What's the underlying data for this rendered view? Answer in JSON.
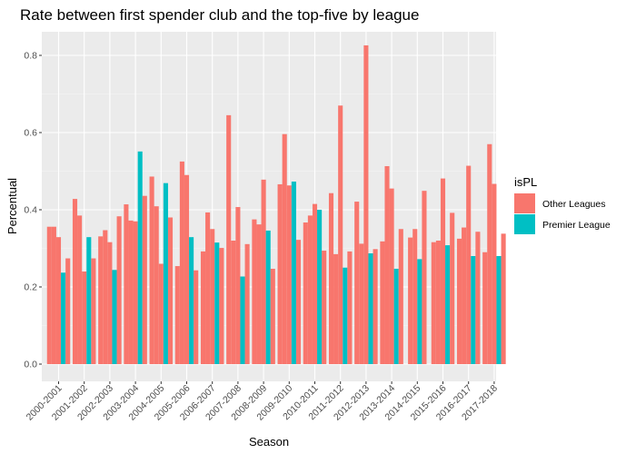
{
  "chart_data": {
    "type": "bar",
    "title": "Rate between first spender club and the top-five by league",
    "xlabel": "Season",
    "ylabel": "Percentual",
    "ylim": [
      0,
      0.85
    ],
    "yticks": [
      0.0,
      0.2,
      0.4,
      0.6,
      0.8
    ],
    "ytick_labels": [
      "0.0",
      "0.2",
      "0.4",
      "0.6",
      "0.8"
    ],
    "grid": true,
    "legend_position": "right",
    "legend": {
      "title": "isPL",
      "entries": [
        {
          "name": "Other Leagues",
          "color": "#F8766D"
        },
        {
          "name": "Premier League",
          "color": "#00BFC4"
        }
      ]
    },
    "categories": [
      "2000-2001",
      "2001-2002",
      "2002-2003",
      "2003-2004",
      "2004-2005",
      "2005-2006",
      "2006-2007",
      "2007-2008",
      "2008-2009",
      "2009-2010",
      "2010-2011",
      "2011-2012",
      "2012-2013",
      "2013-2014",
      "2014-2015",
      "2015-2016",
      "2016-2017",
      "2017-2018"
    ],
    "bars": [
      [
        {
          "v": 0.356,
          "s": "o"
        },
        {
          "v": 0.356,
          "s": "o"
        },
        {
          "v": 0.329,
          "s": "o"
        },
        {
          "v": 0.237,
          "s": "p"
        },
        {
          "v": 0.274,
          "s": "o"
        }
      ],
      [
        {
          "v": 0.428,
          "s": "o"
        },
        {
          "v": 0.385,
          "s": "o"
        },
        {
          "v": 0.24,
          "s": "o"
        },
        {
          "v": 0.329,
          "s": "p"
        },
        {
          "v": 0.274,
          "s": "o"
        }
      ],
      [
        {
          "v": 0.331,
          "s": "o"
        },
        {
          "v": 0.347,
          "s": "o"
        },
        {
          "v": 0.316,
          "s": "o"
        },
        {
          "v": 0.244,
          "s": "p"
        },
        {
          "v": 0.383,
          "s": "o"
        }
      ],
      [
        {
          "v": 0.414,
          "s": "o"
        },
        {
          "v": 0.372,
          "s": "o"
        },
        {
          "v": 0.37,
          "s": "o"
        },
        {
          "v": 0.551,
          "s": "p"
        },
        {
          "v": 0.436,
          "s": "o"
        }
      ],
      [
        {
          "v": 0.486,
          "s": "o"
        },
        {
          "v": 0.409,
          "s": "o"
        },
        {
          "v": 0.26,
          "s": "o"
        },
        {
          "v": 0.469,
          "s": "p"
        },
        {
          "v": 0.38,
          "s": "o"
        }
      ],
      [
        {
          "v": 0.254,
          "s": "o"
        },
        {
          "v": 0.525,
          "s": "o"
        },
        {
          "v": 0.49,
          "s": "o"
        },
        {
          "v": 0.329,
          "s": "p"
        },
        {
          "v": 0.243,
          "s": "o"
        }
      ],
      [
        {
          "v": 0.292,
          "s": "o"
        },
        {
          "v": 0.393,
          "s": "o"
        },
        {
          "v": 0.35,
          "s": "o"
        },
        {
          "v": 0.315,
          "s": "p"
        },
        {
          "v": 0.301,
          "s": "o"
        }
      ],
      [
        {
          "v": 0.645,
          "s": "o"
        },
        {
          "v": 0.32,
          "s": "o"
        },
        {
          "v": 0.407,
          "s": "o"
        },
        {
          "v": 0.227,
          "s": "p"
        },
        {
          "v": 0.311,
          "s": "o"
        }
      ],
      [
        {
          "v": 0.375,
          "s": "o"
        },
        {
          "v": 0.362,
          "s": "o"
        },
        {
          "v": 0.478,
          "s": "o"
        },
        {
          "v": 0.346,
          "s": "p"
        },
        {
          "v": 0.247,
          "s": "o"
        }
      ],
      [
        {
          "v": 0.466,
          "s": "o"
        },
        {
          "v": 0.596,
          "s": "o"
        },
        {
          "v": 0.463,
          "s": "o"
        },
        {
          "v": 0.473,
          "s": "p"
        },
        {
          "v": 0.322,
          "s": "o"
        }
      ],
      [
        {
          "v": 0.367,
          "s": "o"
        },
        {
          "v": 0.385,
          "s": "o"
        },
        {
          "v": 0.415,
          "s": "o"
        },
        {
          "v": 0.4,
          "s": "p"
        },
        {
          "v": 0.294,
          "s": "o"
        }
      ],
      [
        {
          "v": 0.443,
          "s": "o"
        },
        {
          "v": 0.285,
          "s": "o"
        },
        {
          "v": 0.67,
          "s": "o"
        },
        {
          "v": 0.25,
          "s": "p"
        },
        {
          "v": 0.292,
          "s": "o"
        }
      ],
      [
        {
          "v": 0.421,
          "s": "o"
        },
        {
          "v": 0.312,
          "s": "o"
        },
        {
          "v": 0.826,
          "s": "o"
        },
        {
          "v": 0.287,
          "s": "p"
        },
        {
          "v": 0.298,
          "s": "o"
        }
      ],
      [
        {
          "v": 0.318,
          "s": "o"
        },
        {
          "v": 0.513,
          "s": "o"
        },
        {
          "v": 0.455,
          "s": "o"
        },
        {
          "v": 0.247,
          "s": "p"
        },
        {
          "v": 0.35,
          "s": "o"
        }
      ],
      [
        {
          "v": 0.328,
          "s": "o"
        },
        {
          "v": 0.35,
          "s": "o"
        },
        {
          "v": 0.272,
          "s": "p"
        },
        {
          "v": 0.449,
          "s": "o"
        }
      ],
      [
        {
          "v": 0.316,
          "s": "o"
        },
        {
          "v": 0.32,
          "s": "o"
        },
        {
          "v": 0.481,
          "s": "o"
        },
        {
          "v": 0.308,
          "s": "p"
        },
        {
          "v": 0.392,
          "s": "o"
        }
      ],
      [
        {
          "v": 0.325,
          "s": "o"
        },
        {
          "v": 0.354,
          "s": "o"
        },
        {
          "v": 0.514,
          "s": "o"
        },
        {
          "v": 0.28,
          "s": "p"
        },
        {
          "v": 0.343,
          "s": "o"
        }
      ],
      [
        {
          "v": 0.29,
          "s": "o"
        },
        {
          "v": 0.57,
          "s": "o"
        },
        {
          "v": 0.467,
          "s": "o"
        },
        {
          "v": 0.28,
          "s": "p"
        },
        {
          "v": 0.338,
          "s": "o"
        }
      ]
    ]
  }
}
